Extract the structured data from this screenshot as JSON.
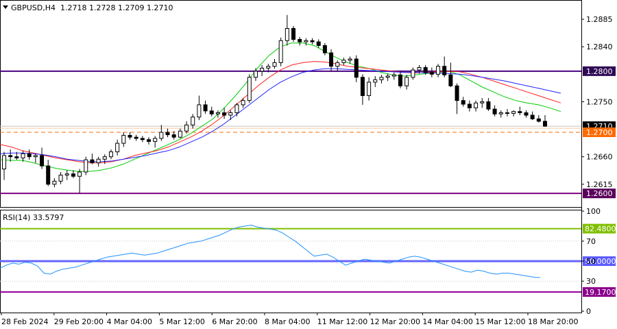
{
  "header": {
    "symbol": "GBPUSD,H4",
    "ohlc": "1.2718 1.2728 1.2709 1.2710"
  },
  "rsi_panel": {
    "title": "RSI(14) 33.5797"
  },
  "colors": {
    "bull_body": "#ffffff",
    "bear_body": "#000000",
    "ma_fast": "#00cc00",
    "ma_mid": "#ff2020",
    "ma_slow": "#2020ff",
    "resistance": "#4b0082",
    "support": "#800080",
    "bid_line": "#c0c0c0",
    "target_line": "#ff6a00",
    "rsi_line": "#1e90ff",
    "rsi_upper": "#7fbf00",
    "rsi_mid": "#6666ff",
    "rsi_lower": "#990099",
    "badge_resistance": "#2e0854",
    "badge_support": "#5a005a",
    "badge_bid": "#000000",
    "badge_target": "#ff6a00",
    "badge_upper": "#7fbf00",
    "badge_mid": "#5b5bff",
    "badge_lower": "#8b008b"
  },
  "chart_data": [
    {
      "type": "candlestick",
      "title": "GBPUSD,H4",
      "ylim": [
        1.258,
        1.2912
      ],
      "yticks": [
        "1.2885",
        "1.2840",
        "1.2750",
        "1.2660",
        "1.2615"
      ],
      "xtick_labels": [
        "28 Feb 2024",
        "29 Feb 20:00",
        "4 Mar 04:00",
        "5 Mar 12:00",
        "6 Mar 20:00",
        "8 Mar 04:00",
        "11 Mar 12:00",
        "12 Mar 20:00",
        "14 Mar 04:00",
        "15 Mar 12:00",
        "18 Mar 20:00"
      ],
      "candles": [
        [
          1.264,
          1.2668,
          1.2622,
          1.2662
        ],
        [
          1.2662,
          1.2672,
          1.2652,
          1.266
        ],
        [
          1.266,
          1.2668,
          1.2655,
          1.2658
        ],
        [
          1.2658,
          1.267,
          1.2652,
          1.2665
        ],
        [
          1.2665,
          1.2672,
          1.2655,
          1.266
        ],
        [
          1.266,
          1.2665,
          1.265,
          1.2662
        ],
        [
          1.2662,
          1.2675,
          1.264,
          1.2645
        ],
        [
          1.2645,
          1.2655,
          1.2612,
          1.2615
        ],
        [
          1.2615,
          1.2625,
          1.261,
          1.262
        ],
        [
          1.262,
          1.2635,
          1.2615,
          1.263
        ],
        [
          1.263,
          1.2638,
          1.2622,
          1.2632
        ],
        [
          1.2632,
          1.2638,
          1.2625,
          1.2628
        ],
        [
          1.2628,
          1.264,
          1.26,
          1.2635
        ],
        [
          1.2635,
          1.266,
          1.263,
          1.2655
        ],
        [
          1.2655,
          1.2665,
          1.2648,
          1.265
        ],
        [
          1.265,
          1.266,
          1.2644,
          1.2656
        ],
        [
          1.2656,
          1.2664,
          1.2648,
          1.266
        ],
        [
          1.266,
          1.2672,
          1.2656,
          1.2668
        ],
        [
          1.2668,
          1.2688,
          1.2662,
          1.2682
        ],
        [
          1.2682,
          1.27,
          1.2676,
          1.2695
        ],
        [
          1.2695,
          1.27,
          1.2688,
          1.2692
        ],
        [
          1.2692,
          1.2696,
          1.2686,
          1.269
        ],
        [
          1.269,
          1.2694,
          1.2684,
          1.2688
        ],
        [
          1.2688,
          1.2692,
          1.268,
          1.2685
        ],
        [
          1.2685,
          1.2694,
          1.2675,
          1.269
        ],
        [
          1.269,
          1.2712,
          1.2686,
          1.27
        ],
        [
          1.27,
          1.2706,
          1.2692,
          1.2696
        ],
        [
          1.2696,
          1.2702,
          1.2688,
          1.2692
        ],
        [
          1.2692,
          1.2706,
          1.269,
          1.2702
        ],
        [
          1.2702,
          1.2718,
          1.2698,
          1.2712
        ],
        [
          1.2712,
          1.273,
          1.2706,
          1.2725
        ],
        [
          1.2725,
          1.276,
          1.272,
          1.2745
        ],
        [
          1.2745,
          1.2752,
          1.273,
          1.2735
        ],
        [
          1.2735,
          1.2742,
          1.2726,
          1.273
        ],
        [
          1.273,
          1.2736,
          1.2724,
          1.2732
        ],
        [
          1.2732,
          1.274,
          1.2722,
          1.2728
        ],
        [
          1.2728,
          1.2736,
          1.272,
          1.2732
        ],
        [
          1.2732,
          1.2748,
          1.2726,
          1.2745
        ],
        [
          1.2745,
          1.2756,
          1.274,
          1.2752
        ],
        [
          1.2752,
          1.2795,
          1.2748,
          1.279
        ],
        [
          1.279,
          1.2805,
          1.2784,
          1.28
        ],
        [
          1.28,
          1.281,
          1.2792,
          1.2805
        ],
        [
          1.2805,
          1.2812,
          1.2798,
          1.2808
        ],
        [
          1.2808,
          1.282,
          1.2804,
          1.2814
        ],
        [
          1.2814,
          1.2855,
          1.2808,
          1.285
        ],
        [
          1.285,
          1.2892,
          1.2842,
          1.287
        ],
        [
          1.287,
          1.2874,
          1.2848,
          1.2852
        ],
        [
          1.2852,
          1.2856,
          1.2842,
          1.2848
        ],
        [
          1.2848,
          1.2854,
          1.2842,
          1.285
        ],
        [
          1.285,
          1.2854,
          1.2844,
          1.2848
        ],
        [
          1.2848,
          1.2852,
          1.2838,
          1.2842
        ],
        [
          1.2842,
          1.2846,
          1.2826,
          1.283
        ],
        [
          1.283,
          1.2836,
          1.28,
          1.2808
        ],
        [
          1.2808,
          1.2818,
          1.28,
          1.2814
        ],
        [
          1.2814,
          1.2822,
          1.281,
          1.2818
        ],
        [
          1.2818,
          1.2824,
          1.2812,
          1.282
        ],
        [
          1.282,
          1.2826,
          1.2782,
          1.279
        ],
        [
          1.279,
          1.2795,
          1.2745,
          1.276
        ],
        [
          1.276,
          1.279,
          1.2752,
          1.2782
        ],
        [
          1.2782,
          1.2792,
          1.2774,
          1.2786
        ],
        [
          1.2786,
          1.2794,
          1.278,
          1.279
        ],
        [
          1.279,
          1.2796,
          1.2784,
          1.2792
        ],
        [
          1.2792,
          1.2798,
          1.2786,
          1.2794
        ],
        [
          1.2794,
          1.28,
          1.2772,
          1.2776
        ],
        [
          1.2776,
          1.2794,
          1.277,
          1.279
        ],
        [
          1.279,
          1.2806,
          1.2786,
          1.2802
        ],
        [
          1.2802,
          1.281,
          1.2796,
          1.2806
        ],
        [
          1.2806,
          1.281,
          1.2794,
          1.2798
        ],
        [
          1.2798,
          1.2806,
          1.279,
          1.2795
        ],
        [
          1.2795,
          1.2812,
          1.279,
          1.2808
        ],
        [
          1.2808,
          1.2824,
          1.279,
          1.2794
        ],
        [
          1.2794,
          1.2814,
          1.2774,
          1.2776
        ],
        [
          1.2776,
          1.278,
          1.273,
          1.2752
        ],
        [
          1.2752,
          1.2758,
          1.2742,
          1.2746
        ],
        [
          1.2746,
          1.2752,
          1.2734,
          1.274
        ],
        [
          1.274,
          1.2752,
          1.2734,
          1.2748
        ],
        [
          1.2748,
          1.2756,
          1.274,
          1.275
        ],
        [
          1.275,
          1.2756,
          1.2735,
          1.2738
        ],
        [
          1.2738,
          1.2744,
          1.2726,
          1.273
        ],
        [
          1.273,
          1.2736,
          1.2724,
          1.2732
        ],
        [
          1.2732,
          1.2738,
          1.2726,
          1.2731
        ],
        [
          1.2731,
          1.2736,
          1.2726,
          1.2734
        ],
        [
          1.2734,
          1.2742,
          1.2728,
          1.2732
        ],
        [
          1.2732,
          1.2736,
          1.2724,
          1.2728
        ],
        [
          1.2728,
          1.2734,
          1.272,
          1.2722
        ],
        [
          1.2722,
          1.2728,
          1.2716,
          1.2718
        ],
        [
          1.2718,
          1.2728,
          1.2709,
          1.271
        ]
      ],
      "ma_fast": [
        1.2655,
        1.2654,
        1.2654,
        1.265,
        1.2645,
        1.2641,
        1.2638,
        1.2636,
        1.2636,
        1.2638,
        1.2642,
        1.2648,
        1.2656,
        1.2664,
        1.2672,
        1.268,
        1.2688,
        1.2698,
        1.271,
        1.2722,
        1.274,
        1.276,
        1.2782,
        1.2806,
        1.2826,
        1.284,
        1.2846,
        1.2846,
        1.2842,
        1.2832,
        1.2822,
        1.2814,
        1.2808,
        1.2804,
        1.2798,
        1.2794,
        1.2792,
        1.2794,
        1.2796,
        1.2798,
        1.28,
        1.2794,
        1.2784,
        1.2774,
        1.2766,
        1.2758,
        1.2752,
        1.2748,
        1.2745,
        1.274,
        1.2734
      ],
      "ma_mid": [
        1.268,
        1.2676,
        1.267,
        1.2666,
        1.2662,
        1.2658,
        1.2655,
        1.2652,
        1.265,
        1.265,
        1.2652,
        1.2656,
        1.2662,
        1.2666,
        1.267,
        1.2676,
        1.2684,
        1.2692,
        1.2702,
        1.2714,
        1.2728,
        1.2744,
        1.276,
        1.2776,
        1.279,
        1.2802,
        1.281,
        1.2814,
        1.2816,
        1.2815,
        1.2812,
        1.2808,
        1.2806,
        1.2804,
        1.2802,
        1.28,
        1.2798,
        1.2797,
        1.2798,
        1.2799,
        1.28,
        1.2799,
        1.2795,
        1.279,
        1.2784,
        1.2778,
        1.2772,
        1.2766,
        1.276,
        1.2754,
        1.2748
      ],
      "ma_slow": [
        1.2665,
        1.2666,
        1.2666,
        1.2665,
        1.2663,
        1.266,
        1.2656,
        1.2654,
        1.2652,
        1.2652,
        1.2653,
        1.2656,
        1.2659,
        1.2662,
        1.2666,
        1.267,
        1.2676,
        1.2684,
        1.2692,
        1.2702,
        1.2714,
        1.2728,
        1.2742,
        1.2756,
        1.277,
        1.2782,
        1.2791,
        1.2798,
        1.2802,
        1.2804,
        1.2804,
        1.2803,
        1.2802,
        1.2801,
        1.28,
        1.2799,
        1.2798,
        1.2798,
        1.2797,
        1.2797,
        1.2796,
        1.2795,
        1.2793,
        1.279,
        1.2787,
        1.2784,
        1.278,
        1.2776,
        1.2772,
        1.2768,
        1.2764
      ],
      "levels": [
        {
          "value": 1.28,
          "label": "1.2800",
          "style": "resistance"
        },
        {
          "value": 1.26,
          "label": "1.2600",
          "style": "support"
        },
        {
          "value": 1.271,
          "label": "1.2710",
          "style": "bid"
        },
        {
          "value": 1.27,
          "label": "1.2700",
          "style": "target"
        }
      ]
    },
    {
      "type": "line",
      "title": "RSI(14) 33.5797",
      "ylim": [
        0,
        100
      ],
      "yticks": [
        "100",
        "70",
        "50",
        "30",
        "0"
      ],
      "values": [
        43,
        46,
        48,
        47,
        49,
        48,
        45,
        38,
        37,
        40,
        42,
        43,
        44,
        46,
        48,
        50,
        52,
        54,
        55,
        56,
        57,
        58,
        57,
        56,
        57,
        58,
        60,
        62,
        64,
        66,
        68,
        69,
        70,
        72,
        74,
        76,
        79,
        82,
        84,
        85,
        86,
        84,
        83,
        82,
        81,
        78,
        74,
        70,
        65,
        60,
        55,
        56,
        57,
        54,
        50,
        46,
        48,
        50,
        52,
        51,
        50,
        49,
        48,
        50,
        52,
        54,
        55,
        54,
        52,
        50,
        48,
        46,
        44,
        42,
        40,
        39,
        41,
        40,
        38,
        37,
        38,
        38,
        37,
        36,
        35,
        34,
        33.58
      ],
      "levels": [
        {
          "value": 82.48,
          "label": "82.4800",
          "style": "upper"
        },
        {
          "value": 50.0,
          "label": "50.0000",
          "style": "mid"
        },
        {
          "value": 19.17,
          "label": "19.1700",
          "style": "lower"
        }
      ]
    }
  ]
}
